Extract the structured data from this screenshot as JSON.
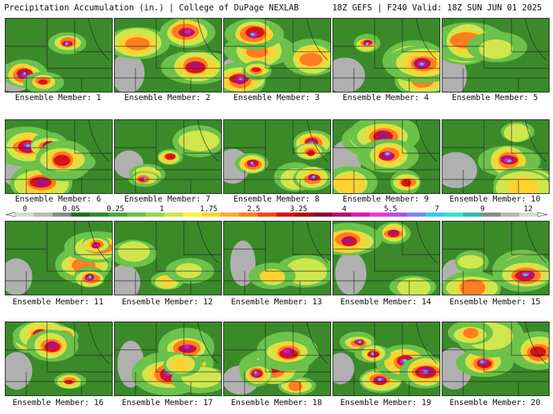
{
  "header": {
    "left": "Precipitation Accumulation (in.) | College of DuPage NEXLAB",
    "right": "18Z GEFS | F240 Valid: 18Z SUN JUN 01 2025"
  },
  "colorbar": {
    "labels": [
      "0",
      "0.05",
      "0.25",
      "1",
      "1.75",
      "2.5",
      "3.25",
      "4",
      "5.5",
      "7",
      "9",
      "12"
    ],
    "colors": [
      "#d8d8d8",
      "#b8b8b8",
      "#8a8a8a",
      "#1e6e1e",
      "#2f8a2f",
      "#46a83a",
      "#6cc24a",
      "#9ad44e",
      "#cfe64c",
      "#fff03c",
      "#ffd232",
      "#ffaa28",
      "#ff7e20",
      "#f04818",
      "#d81414",
      "#b00c0c",
      "#8a0a3a",
      "#b0107a",
      "#d81ab4",
      "#e83ad8",
      "#b450e6",
      "#7c8af0",
      "#3cc8f0",
      "#36e0d0",
      "#3cb4b4",
      "#8a8a8a",
      "#b4b4b4",
      "#d8d8d8"
    ]
  },
  "panels": [
    {
      "label": "Ensemble Member: 1"
    },
    {
      "label": "Ensemble Member: 2"
    },
    {
      "label": "Ensemble Member: 3"
    },
    {
      "label": "Ensemble Member: 4"
    },
    {
      "label": "Ensemble Member: 5"
    },
    {
      "label": "Ensemble Member: 6"
    },
    {
      "label": "Ensemble Member: 7"
    },
    {
      "label": "Ensemble Member: 8"
    },
    {
      "label": "Ensemble Member: 9"
    },
    {
      "label": "Ensemble Member: 10"
    },
    {
      "label": "Ensemble Member: 11"
    },
    {
      "label": "Ensemble Member: 12"
    },
    {
      "label": "Ensemble Member: 13"
    },
    {
      "label": "Ensemble Member: 14"
    },
    {
      "label": "Ensemble Member: 15"
    },
    {
      "label": "Ensemble Member: 16"
    },
    {
      "label": "Ensemble Member: 17"
    },
    {
      "label": "Ensemble Member: 18"
    },
    {
      "label": "Ensemble Member: 19"
    },
    {
      "label": "Ensemble Member: 20"
    }
  ]
}
